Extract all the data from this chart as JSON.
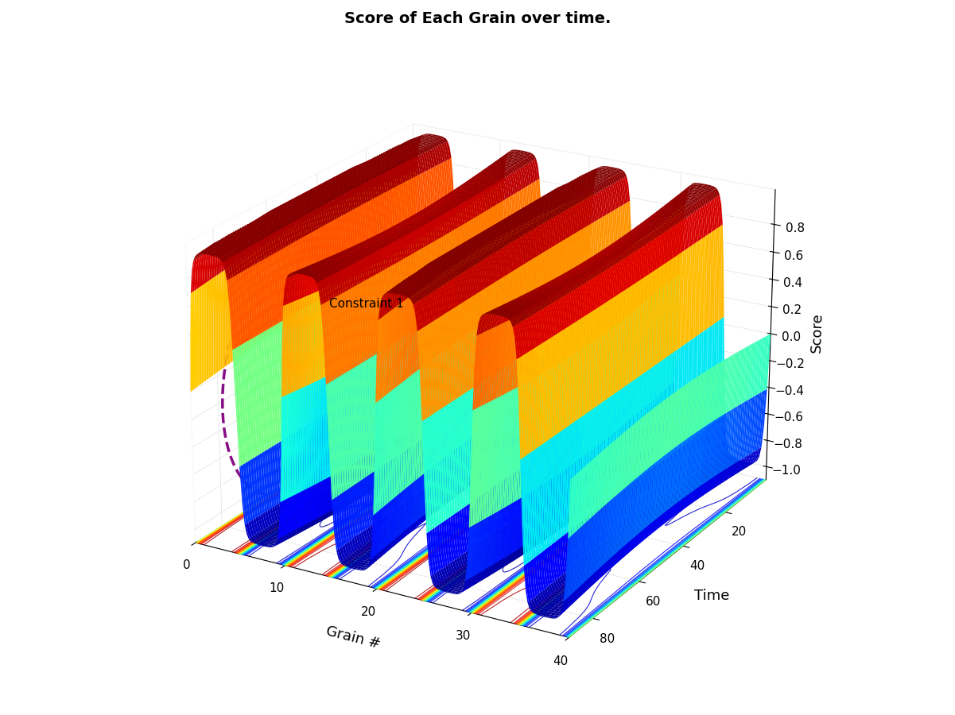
{
  "title": "Score of Each Grain over time.",
  "xlabel": "Grain #",
  "ylabel": "Time",
  "zlabel": "Score",
  "grain_min": 0,
  "grain_max": 40,
  "grain_n": 200,
  "time_min": 0,
  "time_max": 90,
  "time_n": 200,
  "zlim": [
    -1.1,
    1.05
  ],
  "zticks": [
    -1.0,
    -0.8,
    -0.6,
    -0.4,
    -0.2,
    0.0,
    0.2,
    0.4,
    0.6,
    0.8
  ],
  "time_ticks": [
    20,
    40,
    60,
    80
  ],
  "grain_ticks": [
    0,
    10,
    20,
    30,
    40
  ],
  "constraint_label": "Constraint 1",
  "dashed_color": "#800080",
  "background_color": "white",
  "elev": 22,
  "azim": -60
}
